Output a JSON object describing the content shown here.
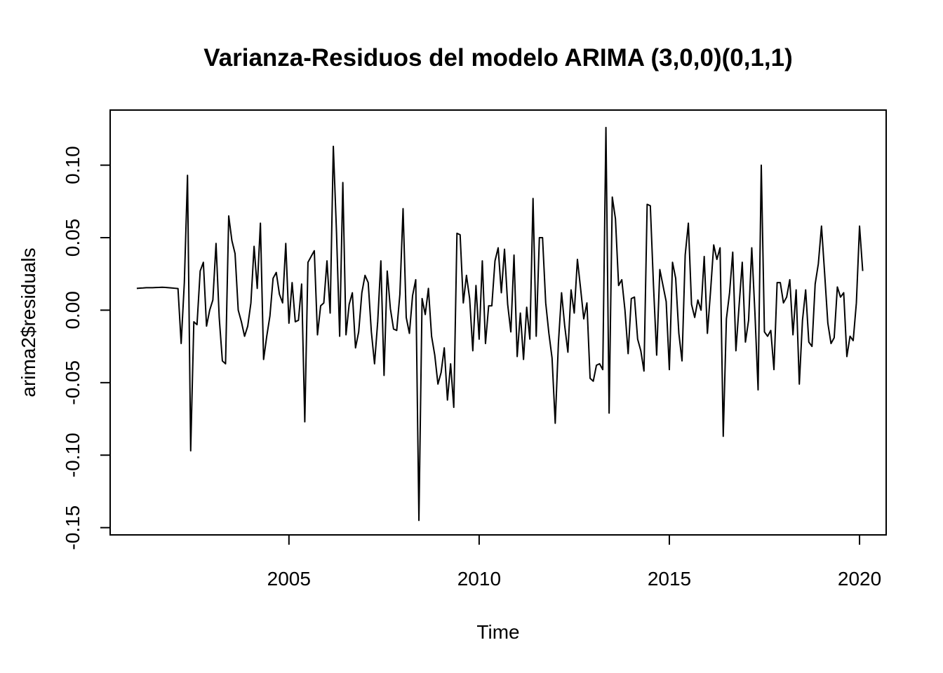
{
  "chart_data": {
    "type": "line",
    "title": "Varianza-Residuos del modelo ARIMA (3,0,0)(0,1,1)",
    "xlabel": "Time",
    "ylabel": "arima2$residuals",
    "xlim": [
      2000.3,
      2020.7
    ],
    "ylim": [
      -0.155,
      0.138
    ],
    "x_ticks": [
      2005,
      2010,
      2015,
      2020
    ],
    "y_ticks": [
      -0.15,
      -0.1,
      -0.05,
      0.0,
      0.05,
      0.1
    ],
    "x_tick_labels": [
      "2005",
      "2010",
      "2015",
      "2020"
    ],
    "y_tick_labels": [
      "-0.15",
      "-0.10",
      "-0.05",
      "0.00",
      "0.05",
      "0.10"
    ],
    "grid": false,
    "legend": "none",
    "line_color": "#000000",
    "x_start": 2001.0,
    "frequency": 12,
    "values": [
      0.015,
      0.0152,
      0.0153,
      0.0155,
      0.0155,
      0.0155,
      0.0156,
      0.0157,
      0.0158,
      0.0157,
      0.0155,
      0.0153,
      0.0151,
      0.0149,
      -0.023,
      0.019,
      0.093,
      -0.097,
      -0.008,
      -0.01,
      0.027,
      0.033,
      -0.011,
      0.0,
      0.007,
      0.046,
      -0.005,
      -0.035,
      -0.037,
      0.065,
      0.048,
      0.039,
      0.0,
      -0.008,
      -0.018,
      -0.011,
      0.005,
      0.044,
      0.015,
      0.06,
      -0.034,
      -0.018,
      -0.004,
      0.022,
      0.026,
      0.011,
      0.005,
      0.046,
      -0.009,
      0.019,
      -0.008,
      -0.007,
      0.018,
      -0.077,
      0.033,
      0.037,
      0.041,
      -0.017,
      0.003,
      0.005,
      0.034,
      -0.002,
      0.113,
      0.054,
      -0.018,
      0.088,
      -0.017,
      0.004,
      0.012,
      -0.026,
      -0.015,
      0.012,
      0.024,
      0.019,
      -0.015,
      -0.037,
      -0.008,
      0.034,
      -0.045,
      0.027,
      0.001,
      -0.013,
      -0.014,
      0.011,
      0.07,
      -0.005,
      -0.016,
      0.01,
      0.021,
      -0.145,
      0.008,
      -0.003,
      0.015,
      -0.018,
      -0.031,
      -0.051,
      -0.043,
      -0.026,
      -0.062,
      -0.037,
      -0.067,
      0.053,
      0.052,
      0.005,
      0.024,
      0.008,
      -0.028,
      0.017,
      -0.02,
      0.034,
      -0.023,
      0.003,
      0.003,
      0.034,
      0.043,
      0.012,
      0.042,
      0.004,
      -0.015,
      0.038,
      -0.032,
      -0.002,
      -0.034,
      0.002,
      -0.02,
      0.077,
      -0.018,
      0.05,
      0.05,
      0.005,
      -0.016,
      -0.033,
      -0.078,
      -0.023,
      0.012,
      -0.011,
      -0.029,
      0.014,
      -0.002,
      0.035,
      0.015,
      -0.006,
      0.005,
      -0.047,
      -0.049,
      -0.038,
      -0.037,
      -0.041,
      0.126,
      -0.071,
      0.078,
      0.063,
      0.017,
      0.021,
      0.0,
      -0.03,
      0.008,
      0.009,
      -0.02,
      -0.028,
      -0.042,
      0.073,
      0.072,
      0.017,
      -0.031,
      0.028,
      0.017,
      0.006,
      -0.041,
      0.033,
      0.022,
      -0.016,
      -0.035,
      0.038,
      0.06,
      0.004,
      -0.005,
      0.007,
      0.0,
      0.037,
      -0.016,
      0.013,
      0.045,
      0.035,
      0.043,
      -0.087,
      -0.006,
      0.012,
      0.04,
      -0.028,
      0.003,
      0.033,
      -0.022,
      -0.007,
      0.043,
      -0.002,
      -0.055,
      0.1,
      -0.015,
      -0.018,
      -0.014,
      -0.041,
      0.019,
      0.019,
      0.005,
      0.009,
      0.021,
      -0.017,
      0.014,
      -0.051,
      -0.007,
      0.014,
      -0.022,
      -0.025,
      0.018,
      0.032,
      0.058,
      0.025,
      -0.009,
      -0.023,
      -0.019,
      0.016,
      0.009,
      0.012,
      -0.032,
      -0.018,
      -0.021,
      0.005,
      0.058,
      0.027
    ]
  }
}
